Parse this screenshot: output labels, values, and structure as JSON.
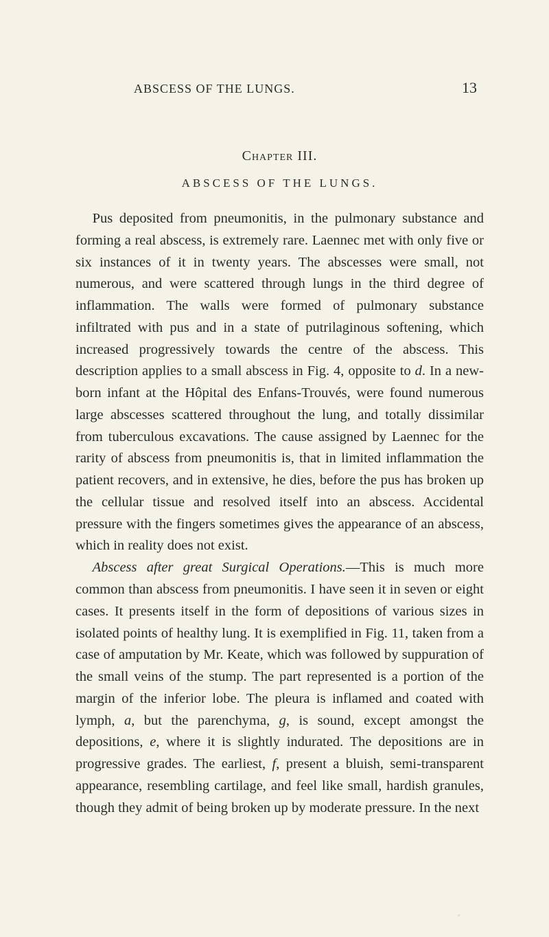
{
  "header": {
    "running_title": "ABSCESS OF THE LUNGS.",
    "page_number": "13"
  },
  "chapter": {
    "label": "Chapter III.",
    "subtitle": "ABSCESS OF THE LUNGS."
  },
  "paragraphs": {
    "p1_a": "Pus deposited from pneumonitis, in the pulmonary substance and forming a real abscess, is extremely rare. Laennec met with only five or six instances of it in twenty years. The ab­scesses were small, not numerous, and were scattered through lungs in the third degree of inflammation. The walls were formed of pulmonary substance infiltrated with pus and in a state of putrilaginous softening, which increased progressively towards the centre of the abscess. This description applies to a small abscess in Fig. 4, opposite to ",
    "p1_d": "d",
    "p1_b": ". In a new-born infant at the Hôpital des Enfans-Trouvés, were found numerous large abscesses scattered throughout the lung, and totally dis­similar from tuberculous excavations. The cause assigned by Laennec for the rarity of abscess from pneumonitis is, that in limited inflammation the patient recovers, and in extensive, he dies, before the pus has broken up the cellular tissue and resolved itself into an abscess. Accidental pressure with the fingers sometimes gives the appearance of an abscess, which in reality does not exist.",
    "p2_lead": "Abscess after great Surgical Operations.",
    "p2_a": "—This is much more common than abscess from pneumonitis. I have seen it in seven or eight cases. It presents itself in the form of de­positions of various sizes in isolated points of healthy lung. It is exemplified in Fig. 11, taken from a case of amputation by Mr. Keate, which was followed by suppuration of the small veins of the stump. The part represented is a portion of the margin of the inferior lobe. The pleura is inflamed and coated with lymph, ",
    "p2_a_i": "a",
    "p2_b": ", but the parenchyma, ",
    "p2_g": "g",
    "p2_c": ", is sound, except amongst the depositions, ",
    "p2_e": "e",
    "p2_d": ", where it is slightly indura­ted. The depositions are in progressive grades. The earliest, ",
    "p2_f": "f",
    "p2_e2": ", present a bluish, semi-transparent appearance, resembling cartilage, and feel like small, hardish granules, though they admit of being broken up by moderate pressure. In the next"
  },
  "style": {
    "background_color": "#f5f2e8",
    "text_color": "#2b2b28",
    "body_fontsize": 20.5,
    "header_fontsize": 18,
    "pagenum_fontsize": 22,
    "chapter_fontsize": 20,
    "subtitle_fontsize": 17,
    "line_height": 1.55
  }
}
